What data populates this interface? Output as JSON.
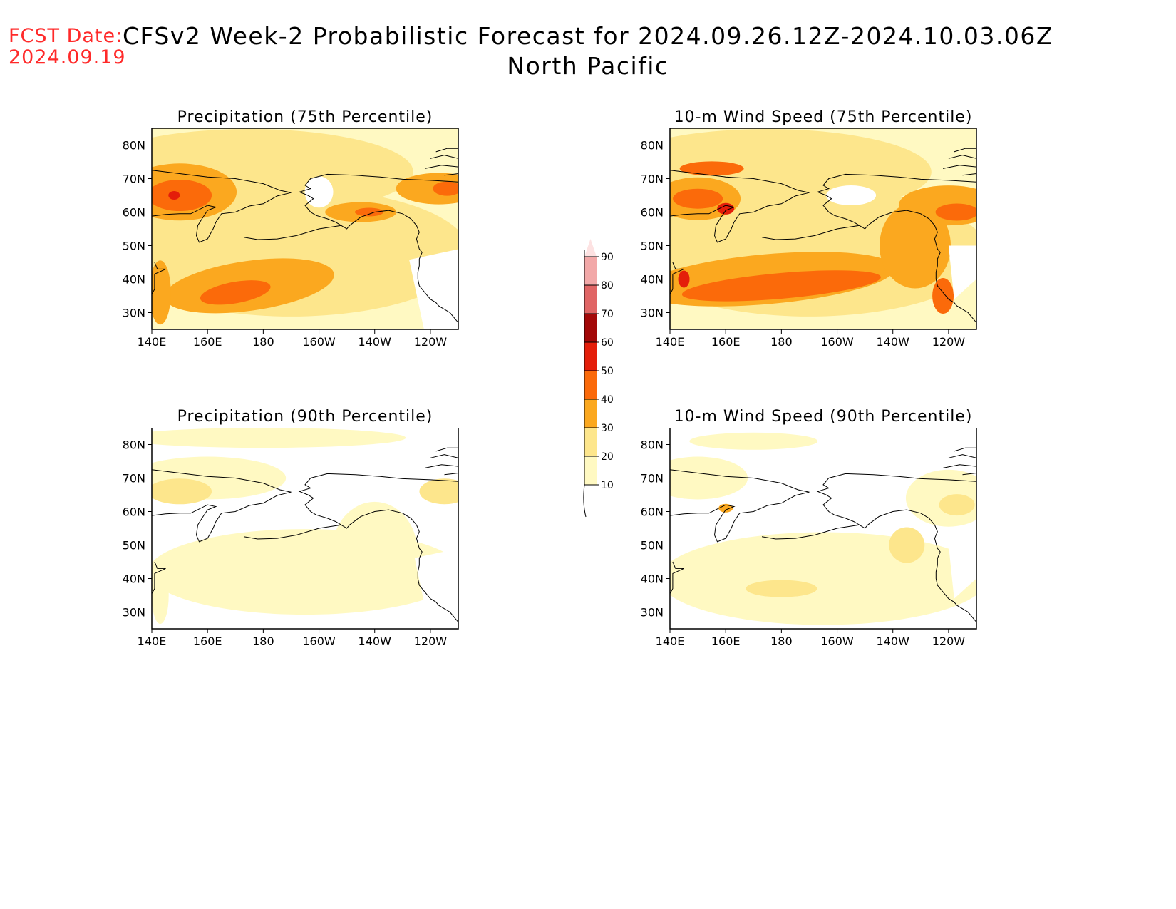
{
  "header": {
    "fcst_label": "FCST Date:",
    "fcst_date": "2024.09.19",
    "title_line1": "CFSv2 Week-2 Probabilistic Forecast for 2024.09.26.12Z-2024.10.03.06Z",
    "title_line2": "North Pacific"
  },
  "panels": [
    {
      "id": "precip75",
      "title": "Precipitation (75th Percentile)",
      "field": "precip",
      "level": "high"
    },
    {
      "id": "wind75",
      "title": "10-m Wind Speed (75th Percentile)",
      "field": "wind",
      "level": "high"
    },
    {
      "id": "precip90",
      "title": "Precipitation (90th Percentile)",
      "field": "precip",
      "level": "low"
    },
    {
      "id": "wind90",
      "title": "10-m Wind Speed (90th Percentile)",
      "field": "wind",
      "level": "low"
    }
  ],
  "axes": {
    "lon_ticks": [
      "140E",
      "160E",
      "180",
      "160W",
      "140W",
      "120W"
    ],
    "lat_ticks": [
      "80N",
      "70N",
      "60N",
      "50N",
      "40N",
      "30N"
    ]
  },
  "colorbar": {
    "levels": [
      "10",
      "20",
      "30",
      "40",
      "50",
      "60",
      "70",
      "80",
      "90"
    ],
    "colors": [
      "#fff9c2",
      "#fde68c",
      "#fba81f",
      "#fb6a0a",
      "#e41e0a",
      "#a30808",
      "#e06565",
      "#f2a8a8",
      "#fde2e2"
    ]
  },
  "colors": {
    "c10": "#fff9c2",
    "c20": "#fde68c",
    "c30": "#fba81f",
    "c40": "#fb6a0a",
    "c50": "#e41e0a",
    "c60": "#a30808",
    "fcst": "#ff2a2a"
  }
}
